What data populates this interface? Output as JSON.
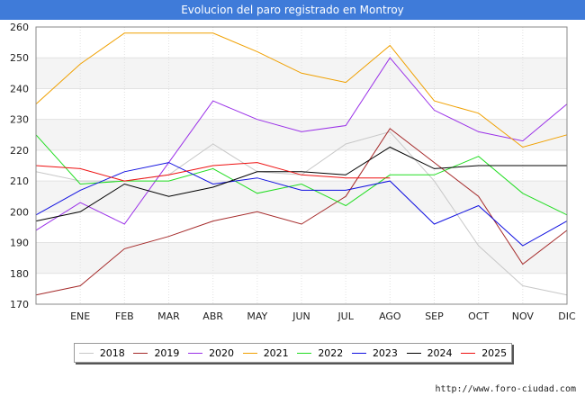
{
  "header": {
    "title": "Evolucion del paro registrado en Montroy"
  },
  "footer": {
    "url": "http://www.foro-ciudad.com"
  },
  "chart_data": {
    "type": "line",
    "title": "Evolucion del paro registrado en Montroy",
    "xlabel": "",
    "ylabel": "",
    "categories": [
      "",
      "ENE",
      "FEB",
      "MAR",
      "ABR",
      "MAY",
      "JUN",
      "JUL",
      "AGO",
      "SEP",
      "OCT",
      "NOV",
      "DIC"
    ],
    "ylim": [
      170,
      260
    ],
    "yticks": [
      170,
      180,
      190,
      200,
      210,
      220,
      230,
      240,
      250,
      260
    ],
    "grid": true,
    "legend_position": "bottom",
    "series": [
      {
        "name": "2018",
        "color": "#c8c8c8",
        "values": [
          213,
          210,
          210,
          212,
          222,
          213,
          212,
          222,
          226,
          210,
          189,
          176,
          173
        ]
      },
      {
        "name": "2019",
        "color": "#a52a2a",
        "values": [
          173,
          176,
          188,
          192,
          197,
          200,
          196,
          205,
          227,
          216,
          205,
          183,
          194
        ]
      },
      {
        "name": "2020",
        "color": "#9a30e8",
        "values": [
          194,
          203,
          196,
          216,
          236,
          230,
          226,
          228,
          250,
          233,
          226,
          223,
          235
        ]
      },
      {
        "name": "2021",
        "color": "#f0a000",
        "values": [
          235,
          248,
          258,
          258,
          258,
          252,
          245,
          242,
          254,
          236,
          232,
          221,
          225
        ]
      },
      {
        "name": "2022",
        "color": "#22dd22",
        "values": [
          225,
          209,
          210,
          210,
          214,
          206,
          209,
          202,
          212,
          212,
          218,
          206,
          199
        ]
      },
      {
        "name": "2023",
        "color": "#1010e0",
        "values": [
          199,
          207,
          213,
          216,
          209,
          211,
          207,
          207,
          210,
          196,
          202,
          189,
          197
        ]
      },
      {
        "name": "2024",
        "color": "#000000",
        "values": [
          197,
          200,
          209,
          205,
          208,
          213,
          213,
          212,
          221,
          214,
          215,
          215,
          215
        ]
      },
      {
        "name": "2025",
        "color": "#ee1111",
        "values": [
          215,
          214,
          210,
          212,
          215,
          216,
          212,
          211,
          211,
          null,
          null,
          null,
          null
        ]
      }
    ]
  }
}
